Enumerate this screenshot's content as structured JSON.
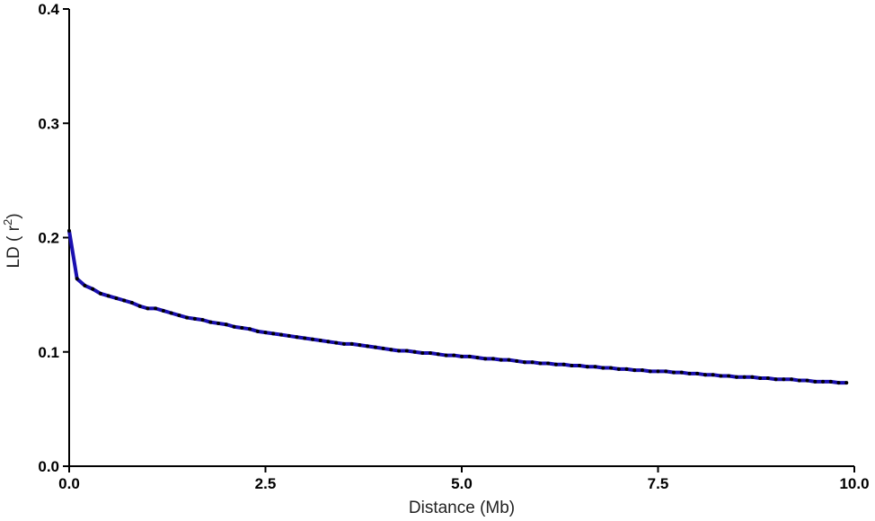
{
  "chart_data": {
    "type": "line",
    "title": "",
    "xlabel": "Distance (Mb)",
    "ylabel_main": "LD ( r",
    "ylabel_sup": "2",
    "ylabel_close": ")",
    "xlim": [
      0,
      10
    ],
    "ylim": [
      0,
      0.4
    ],
    "xticks": [
      0,
      2.5,
      5,
      7.5,
      10
    ],
    "xtick_labels": [
      "0.0",
      "2.5",
      "5.0",
      "7.5",
      "10.0"
    ],
    "yticks": [
      0,
      0.1,
      0.2,
      0.3,
      0.4
    ],
    "ytick_labels": [
      "0.0",
      "0.1",
      "0.2",
      "0.3",
      "0.4"
    ],
    "grid": false,
    "line_color": "#1a0fb0",
    "point_color": "#000000",
    "series": [
      {
        "x": [
          0.0,
          0.1,
          0.2,
          0.3,
          0.4,
          0.5,
          0.6,
          0.7,
          0.8,
          0.9,
          1.0,
          1.1,
          1.2,
          1.3,
          1.4,
          1.5,
          1.6,
          1.7,
          1.8,
          1.9,
          2.0,
          2.1,
          2.2,
          2.3,
          2.4,
          2.5,
          2.6,
          2.7,
          2.8,
          2.9,
          3.0,
          3.1,
          3.2,
          3.3,
          3.4,
          3.5,
          3.6,
          3.7,
          3.8,
          3.9,
          4.0,
          4.1,
          4.2,
          4.3,
          4.4,
          4.5,
          4.6,
          4.7,
          4.8,
          4.9,
          5.0,
          5.1,
          5.2,
          5.3,
          5.4,
          5.5,
          5.6,
          5.7,
          5.8,
          5.9,
          6.0,
          6.1,
          6.2,
          6.3,
          6.4,
          6.5,
          6.6,
          6.7,
          6.8,
          6.9,
          7.0,
          7.1,
          7.2,
          7.3,
          7.4,
          7.5,
          7.6,
          7.7,
          7.8,
          7.9,
          8.0,
          8.1,
          8.2,
          8.3,
          8.4,
          8.5,
          8.6,
          8.7,
          8.8,
          8.9,
          9.0,
          9.1,
          9.2,
          9.3,
          9.4,
          9.5,
          9.6,
          9.7,
          9.8,
          9.9
        ],
        "y": [
          0.206,
          0.164,
          0.158,
          0.155,
          0.151,
          0.149,
          0.147,
          0.145,
          0.143,
          0.14,
          0.138,
          0.138,
          0.136,
          0.134,
          0.132,
          0.13,
          0.129,
          0.128,
          0.126,
          0.125,
          0.124,
          0.122,
          0.121,
          0.12,
          0.118,
          0.117,
          0.116,
          0.115,
          0.114,
          0.113,
          0.112,
          0.111,
          0.11,
          0.109,
          0.108,
          0.107,
          0.107,
          0.106,
          0.105,
          0.104,
          0.103,
          0.102,
          0.101,
          0.101,
          0.1,
          0.099,
          0.099,
          0.098,
          0.097,
          0.097,
          0.096,
          0.096,
          0.095,
          0.094,
          0.094,
          0.093,
          0.093,
          0.092,
          0.091,
          0.091,
          0.09,
          0.09,
          0.089,
          0.089,
          0.088,
          0.088,
          0.087,
          0.087,
          0.086,
          0.086,
          0.085,
          0.085,
          0.084,
          0.084,
          0.083,
          0.083,
          0.083,
          0.082,
          0.082,
          0.081,
          0.081,
          0.08,
          0.08,
          0.079,
          0.079,
          0.078,
          0.078,
          0.078,
          0.077,
          0.077,
          0.076,
          0.076,
          0.076,
          0.075,
          0.075,
          0.074,
          0.074,
          0.074,
          0.073,
          0.073
        ]
      }
    ]
  }
}
